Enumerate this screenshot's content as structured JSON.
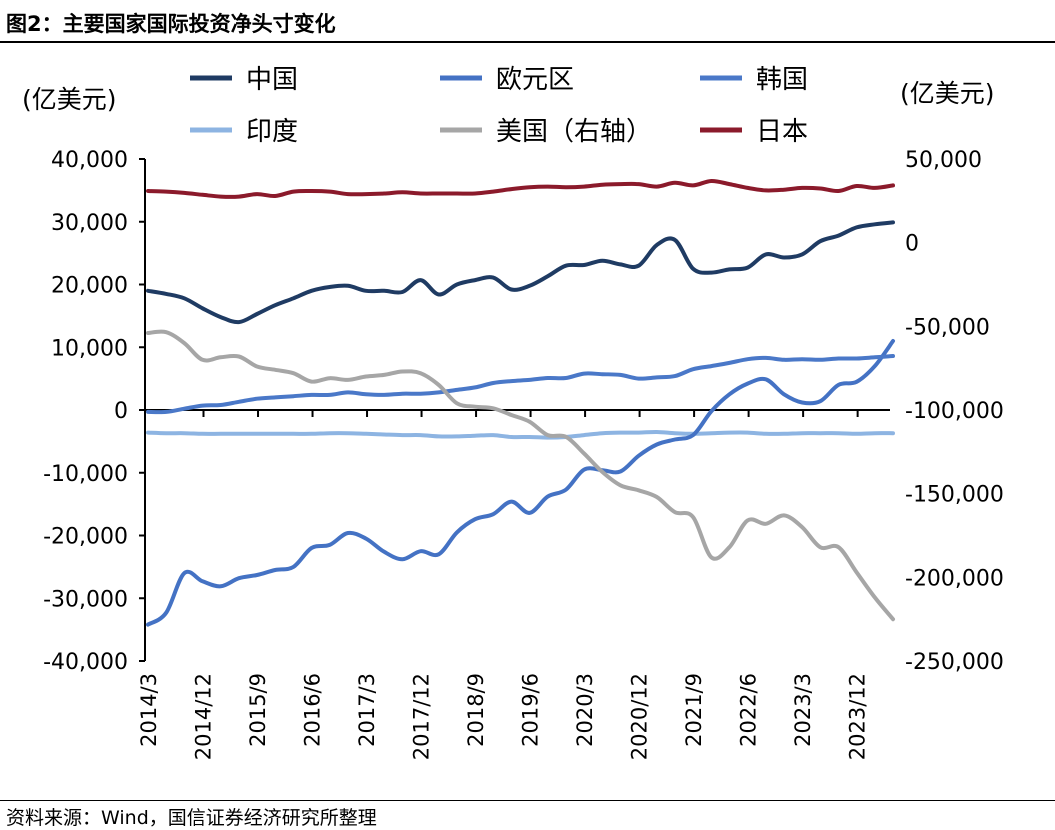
{
  "title": "图2：主要国家国际投资净头寸变化",
  "source": "资料来源：Wind，国信证券经济研究所整理",
  "chart_data": {
    "type": "line",
    "left_unit": "(亿美元)",
    "right_unit": "(亿美元)",
    "x": [
      "2014/3",
      "2014/6",
      "2014/9",
      "2014/12",
      "2015/3",
      "2015/6",
      "2015/9",
      "2015/12",
      "2016/3",
      "2016/6",
      "2016/9",
      "2016/12",
      "2017/3",
      "2017/6",
      "2017/9",
      "2017/12",
      "2018/3",
      "2018/6",
      "2018/9",
      "2018/12",
      "2019/3",
      "2019/6",
      "2019/9",
      "2019/12",
      "2020/3",
      "2020/6",
      "2020/9",
      "2020/12",
      "2021/3",
      "2021/6",
      "2021/9",
      "2021/12",
      "2022/3",
      "2022/6",
      "2022/9",
      "2022/12",
      "2023/3",
      "2023/6",
      "2023/9",
      "2023/12",
      "2024/3",
      "2024/6"
    ],
    "x_tick_labels": [
      "2014/3",
      "2014/12",
      "2015/9",
      "2016/6",
      "2017/3",
      "2017/12",
      "2018/9",
      "2019/6",
      "2020/3",
      "2020/12",
      "2021/9",
      "2022/6",
      "2023/3",
      "2023/12"
    ],
    "left_axis": {
      "ylim": [
        -40000,
        40000
      ],
      "ticks": [
        "40,000",
        "30,000",
        "20,000",
        "10,000",
        "0",
        "-10,000",
        "-20,000",
        "-30,000",
        "-40,000"
      ]
    },
    "right_axis": {
      "ylim": [
        -250000,
        50000
      ],
      "ticks": [
        "50,000",
        "0",
        "-50,000",
        "-100,000",
        "-150,000",
        "-200,000",
        "-250,000"
      ]
    },
    "grid": false,
    "legend_position": "top",
    "series": [
      {
        "name": "中国",
        "axis": "left",
        "color": "#1f3b63",
        "values": [
          19000,
          18500,
          17800,
          16200,
          14800,
          14000,
          15300,
          16700,
          17800,
          19000,
          19600,
          19800,
          19000,
          19000,
          18800,
          20700,
          18400,
          20000,
          20700,
          21100,
          19200,
          19800,
          21300,
          23000,
          23100,
          23800,
          23200,
          23000,
          26300,
          27100,
          22500,
          21900,
          22400,
          22700,
          24800,
          24300,
          24800,
          26900,
          27800,
          29100,
          29600,
          29900
        ]
      },
      {
        "name": "欧元区",
        "axis": "left",
        "color": "#4472c4",
        "values": [
          -34200,
          -32300,
          -26000,
          -27300,
          -28100,
          -26800,
          -26300,
          -25500,
          -25000,
          -22000,
          -21500,
          -19600,
          -20500,
          -22600,
          -23800,
          -22500,
          -23000,
          -19500,
          -17400,
          -16600,
          -14600,
          -16400,
          -13800,
          -12700,
          -9500,
          -9600,
          -9800,
          -7300,
          -5500,
          -4700,
          -4000,
          -200,
          2500,
          4200,
          4900,
          2500,
          1200,
          1400,
          4000,
          4500,
          7000,
          11000
        ]
      },
      {
        "name": "韩国",
        "axis": "left",
        "color": "#4a78c8",
        "values": [
          -300,
          -300,
          200,
          700,
          800,
          1300,
          1800,
          2000,
          2200,
          2400,
          2400,
          2800,
          2500,
          2400,
          2600,
          2600,
          2800,
          3200,
          3600,
          4300,
          4600,
          4800,
          5100,
          5100,
          5800,
          5700,
          5600,
          5000,
          5200,
          5400,
          6500,
          7000,
          7500,
          8100,
          8300,
          8000,
          8100,
          8000,
          8200,
          8200,
          8400,
          8600
        ]
      },
      {
        "name": "印度",
        "axis": "left",
        "color": "#8db4e2",
        "values": [
          -3600,
          -3700,
          -3700,
          -3800,
          -3800,
          -3800,
          -3800,
          -3800,
          -3800,
          -3800,
          -3700,
          -3700,
          -3800,
          -3900,
          -4000,
          -4000,
          -4200,
          -4200,
          -4100,
          -4000,
          -4300,
          -4300,
          -4400,
          -4300,
          -4000,
          -3700,
          -3600,
          -3600,
          -3500,
          -3700,
          -3800,
          -3700,
          -3600,
          -3600,
          -3800,
          -3800,
          -3700,
          -3700,
          -3700,
          -3800,
          -3700,
          -3700
        ]
      },
      {
        "name": "美国（右轴）",
        "axis": "right",
        "color": "#a6a6a6",
        "values": [
          -54000,
          -53500,
          -60000,
          -70000,
          -68500,
          -68000,
          -74000,
          -76000,
          -78000,
          -83000,
          -81000,
          -82000,
          -80000,
          -79000,
          -77000,
          -78000,
          -85000,
          -96000,
          -98000,
          -99000,
          -103000,
          -107000,
          -115000,
          -116000,
          -126000,
          -137000,
          -145000,
          -148000,
          -152000,
          -161000,
          -164000,
          -188000,
          -182000,
          -166000,
          -168000,
          -163000,
          -170000,
          -182000,
          -182000,
          -197000,
          -212000,
          -225000
        ]
      },
      {
        "name": "日本",
        "axis": "left",
        "color": "#8b1a2b",
        "values": [
          34900,
          34800,
          34600,
          34300,
          34000,
          34000,
          34400,
          34100,
          34800,
          34900,
          34800,
          34400,
          34400,
          34500,
          34700,
          34500,
          34500,
          34500,
          34500,
          34800,
          35200,
          35500,
          35600,
          35500,
          35600,
          35900,
          36000,
          36000,
          35600,
          36200,
          35800,
          36500,
          36000,
          35400,
          35000,
          35100,
          35400,
          35300,
          34900,
          35700,
          35400,
          35800
        ]
      }
    ]
  }
}
